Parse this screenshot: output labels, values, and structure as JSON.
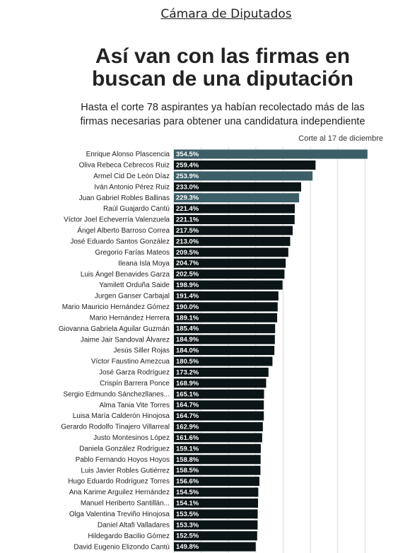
{
  "header": "Cámara de Diputados",
  "chart_data": {
    "type": "hbar",
    "title": "Así van con las firmas en buscan de una diputación",
    "subtitle": "Hasta el corte 78 aspirantes ya habían recolectado más de las firmas necesarias para obtener una candidatura independiente",
    "note": "Corte al 17 de diciembre",
    "categories": [
      "Enrique Alonso Plascencia",
      "Oliva Rebeca Cebrecos Ruiz",
      "Armel Cid De León Díaz",
      "Iván Antonio Pérez Ruiz",
      "Juan Gabriel Robles Ballinas",
      "Raúl Guajardo Cantú",
      "Víctor Joel Echeverría Valenzuela",
      "Ángel Alberto Barroso Correa",
      "José Eduardo Santos González",
      "Gregorio Farías Mateos",
      "Ileana Isla Moya",
      "Luis Ángel Benavides Garza",
      "Yamilett Orduña Saide",
      "Jurgen Ganser Carbajal",
      "Mario Mauricio Hernández Gómez",
      "Mario Hernández Herrera",
      "Giovanna Gabriela Aguilar Guzmán",
      "Jaime Jair Sandoval Álvarez",
      "Jesús Siller Rojas",
      "Víctor Faustino Amezcua",
      "José Garza Rodríguez",
      "Crispín Barrera Ponce",
      "Sergio Edmundo Sánchezllanes...",
      "Alma Tania Vite Torres",
      "Luisa María Calderón Hinojosa",
      "Gerardo Rodolfo Tinajero Villarreal",
      "Justo Montesinos López",
      "Daniela González Rodríguez",
      "Pablo Fernando Hoyos Hoyos",
      "Luis Javier Robles Gutiérrez",
      "Hugo Eduardo Rodríguez Torres",
      "Ana Karime Arguilez Hernández",
      "Manuel Heriberto Santillán...",
      "Olga Valentina Treviño Hinojosa",
      "Daniel Altafi Valladares",
      "Hildegardo Bacilio Gómez",
      "David Eugenio Elizondo Cantú"
    ],
    "values": [
      354.5,
      259.4,
      253.9,
      233.0,
      229.3,
      221.4,
      221.1,
      217.5,
      213.0,
      209.5,
      204.7,
      202.5,
      198.9,
      191.4,
      190.0,
      189.1,
      185.4,
      184.9,
      184.0,
      180.5,
      173.2,
      168.9,
      165.1,
      164.7,
      164.7,
      162.9,
      161.6,
      159.1,
      158.8,
      158.5,
      156.6,
      154.5,
      154.1,
      153.5,
      153.3,
      152.5,
      149.8
    ],
    "value_labels": [
      "354.5%",
      "259.4%",
      "253.9%",
      "233.0%",
      "229.3%",
      "221.4%",
      "221.1%",
      "217.5%",
      "213.0%",
      "209.5%",
      "204.7%",
      "202.5%",
      "198.9%",
      "191.4%",
      "190.0%",
      "189.1%",
      "185.4%",
      "184.9%",
      "184.0%",
      "180.5%",
      "173.2%",
      "168.9%",
      "165.1%",
      "164.7%",
      "164.7%",
      "162.9%",
      "161.6%",
      "159.1%",
      "158.8%",
      "158.5%",
      "156.6%",
      "154.5%",
      "154.1%",
      "153.5%",
      "153.3%",
      "152.5%",
      "149.8%"
    ],
    "colors": [
      "#3c5e67",
      "#0b1416",
      "#3c5e67",
      "#0b1416",
      "#3c5e67",
      "#0b1416",
      "#0b1416",
      "#0b1416",
      "#0b1416",
      "#0b1416",
      "#0b1416",
      "#0b1416",
      "#0b1416",
      "#0b1416",
      "#0b1416",
      "#0b1416",
      "#0b1416",
      "#0b1416",
      "#0b1416",
      "#0b1416",
      "#0b1416",
      "#0b1416",
      "#0b1416",
      "#0b1416",
      "#0b1416",
      "#0b1416",
      "#0b1416",
      "#0b1416",
      "#0b1416",
      "#0b1416",
      "#0b1416",
      "#0b1416",
      "#0b1416",
      "#0b1416",
      "#0b1416",
      "#0b1416",
      "#0b1416"
    ],
    "xlim": [
      0,
      400
    ],
    "xticks": [
      0,
      50,
      100,
      150,
      200,
      250,
      300,
      350
    ],
    "grid": true
  }
}
